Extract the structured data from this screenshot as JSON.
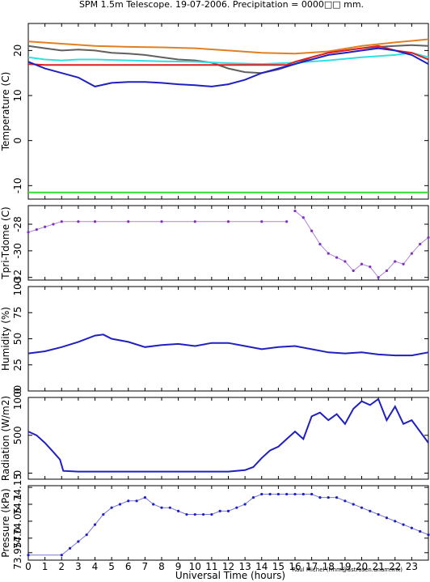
{
  "figure": {
    "title": "SPM 1.5m Telescope. 19-07-2006. Precipitation = 0000□□ mm.",
    "xlabel": "Universal Time (hours)",
    "credit": "Raul Michel (rmm@astrosen.unam.mx)"
  },
  "chart_data": [
    {
      "type": "line",
      "ylabel": "Temperature (C)",
      "xlim": [
        0,
        24
      ],
      "ylim": [
        -13,
        26
      ],
      "xticks": [
        "0",
        "1",
        "2",
        "3",
        "4",
        "5",
        "6",
        "7",
        "8",
        "9",
        "10",
        "11",
        "12",
        "13",
        "14",
        "15",
        "16",
        "17",
        "18",
        "19",
        "20",
        "21",
        "22",
        "23"
      ],
      "yticks": [
        "-10",
        "0",
        "10",
        "20"
      ],
      "series": [
        {
          "color": "#e08020",
          "x": [
            0,
            2,
            4,
            6,
            8,
            10,
            12,
            14,
            16,
            18,
            20,
            22,
            24
          ],
          "y": [
            22,
            21.5,
            21,
            20.8,
            20.7,
            20.5,
            20,
            19.5,
            19.3,
            19.8,
            21,
            21.8,
            22.5
          ]
        },
        {
          "color": "#606060",
          "x": [
            0,
            1,
            2,
            3,
            4,
            5,
            6,
            7,
            8,
            9,
            10,
            11,
            12,
            13,
            14,
            15,
            16,
            17,
            18,
            19,
            20,
            21,
            22,
            23,
            24
          ],
          "y": [
            21,
            20.5,
            20,
            20.2,
            20,
            19.5,
            19.3,
            19,
            18.5,
            18,
            17.8,
            17.3,
            16,
            15.2,
            15,
            15.8,
            17,
            18.5,
            19.5,
            20,
            20.5,
            20.8,
            21,
            21.2,
            21
          ]
        },
        {
          "color": "#30e0e0",
          "x": [
            0,
            1,
            2,
            3,
            4,
            6,
            8,
            10,
            12,
            14,
            16,
            18,
            20,
            22,
            23,
            24
          ],
          "y": [
            18.5,
            18,
            17.8,
            18,
            18,
            17.8,
            17.6,
            17.5,
            17.2,
            17,
            17.3,
            17.8,
            18.5,
            19,
            19.5,
            18.5
          ]
        },
        {
          "color": "#e02020",
          "x": [
            0,
            1,
            2,
            4,
            6,
            8,
            10,
            12,
            14,
            15.5,
            16,
            17,
            18,
            19,
            20,
            21,
            22,
            23,
            24
          ],
          "y": [
            17,
            16.8,
            16.8,
            16.8,
            16.8,
            16.8,
            16.8,
            16.8,
            16.8,
            16.8,
            17.5,
            18.5,
            19.5,
            20,
            20.5,
            21,
            20,
            19.5,
            18
          ]
        },
        {
          "color": "#2020c0",
          "x": [
            0,
            1,
            2,
            3,
            4,
            5,
            6,
            7,
            8,
            9,
            10,
            11,
            12,
            13,
            14,
            15,
            16,
            17,
            18,
            19,
            20,
            21,
            22,
            23,
            24
          ],
          "y": [
            17.5,
            16,
            15,
            14,
            12,
            12.8,
            13,
            13,
            12.8,
            12.5,
            12.3,
            12,
            12.5,
            13.5,
            15,
            16,
            17,
            18,
            19,
            19.5,
            20,
            20.5,
            20,
            19,
            17
          ]
        },
        {
          "color": "#30e030",
          "x": [
            0,
            24
          ],
          "y": [
            -11.5,
            -11.5
          ]
        }
      ]
    },
    {
      "type": "scatter",
      "ylabel": "Tpri-Tdome (C)",
      "xlim": [
        0,
        24
      ],
      "ylim": [
        -32.2,
        -26.6
      ],
      "yticks": [
        "-32",
        "-30",
        "-28"
      ],
      "series": [
        {
          "color": "#8030c0",
          "x": [
            0,
            0.5,
            1,
            1.5,
            2,
            3,
            4,
            6,
            8,
            10,
            12,
            14,
            15.5
          ],
          "y": [
            -28.6,
            -28.4,
            -28.2,
            -28,
            -27.8,
            -27.8,
            -27.8,
            -27.8,
            -27.8,
            -27.8,
            -27.8,
            -27.8,
            -27.8
          ]
        },
        {
          "color": "#8030c0",
          "x": [
            16,
            16.5,
            17,
            17.5,
            18,
            18.5,
            19,
            19.5,
            20,
            20.5,
            21,
            21.5,
            22,
            22.5,
            23,
            23.5,
            24
          ],
          "y": [
            -27,
            -27.5,
            -28.5,
            -29.5,
            -30.2,
            -30.5,
            -30.8,
            -31.5,
            -31,
            -31.2,
            -32,
            -31.5,
            -30.8,
            -31,
            -30.2,
            -29.5,
            -29
          ]
        }
      ]
    },
    {
      "type": "line",
      "ylabel": "Humidity (%)",
      "xlim": [
        0,
        24
      ],
      "ylim": [
        0,
        100
      ],
      "yticks": [
        "0",
        "25",
        "50",
        "75",
        "100"
      ],
      "series": [
        {
          "color": "#2020c0",
          "x": [
            0,
            1,
            2,
            3,
            4,
            4.5,
            5,
            6,
            7,
            8,
            9,
            10,
            11,
            12,
            13,
            14,
            15,
            16,
            17,
            18,
            19,
            20,
            21,
            22,
            23,
            24
          ],
          "y": [
            36,
            38,
            42,
            47,
            53,
            54,
            50,
            47,
            42,
            44,
            45,
            43,
            46,
            46,
            43,
            40,
            42,
            43,
            40,
            37,
            36,
            37,
            35,
            34,
            34,
            37
          ]
        }
      ]
    },
    {
      "type": "line",
      "ylabel": "Radiation (W/m2)",
      "xlim": [
        0,
        24
      ],
      "ylim": [
        -80,
        1000
      ],
      "yticks": [
        "0",
        "500",
        "1000"
      ],
      "series": [
        {
          "color": "#2020c0",
          "x": [
            0,
            0.5,
            1,
            1.5,
            1.9,
            2.1,
            3,
            4,
            6,
            8,
            10,
            12,
            13,
            13.5,
            14,
            14.5,
            15,
            15.5,
            16,
            16.5,
            17,
            17.5,
            18,
            18.5,
            19,
            19.5,
            20,
            20.5,
            21,
            21.5,
            22,
            22.5,
            23,
            23.5,
            24
          ],
          "y": [
            550,
            500,
            400,
            280,
            180,
            30,
            20,
            20,
            20,
            20,
            20,
            20,
            40,
            80,
            200,
            300,
            350,
            450,
            550,
            450,
            750,
            800,
            700,
            780,
            650,
            850,
            950,
            900,
            980,
            700,
            880,
            650,
            700,
            550,
            400
          ]
        }
      ]
    },
    {
      "type": "scatter",
      "ylabel": "Pressure (kPa)",
      "xlim": [
        0,
        24
      ],
      "ylim": [
        73.935,
        74.155
      ],
      "yticks": [
        "73.957",
        "74.0",
        "74.05",
        "74.1",
        "74.15"
      ],
      "ytick_labels_raw": "73.957474.054.74.15",
      "series": [
        {
          "color": "#2020c0",
          "x": [
            0,
            2,
            2.5,
            3,
            3.5,
            4,
            4.5,
            5,
            5.5,
            6,
            6.5,
            7,
            7.5,
            8,
            8.5,
            9,
            9.5,
            10,
            10.5,
            11,
            11.5,
            12,
            12.5,
            13,
            13.5,
            14,
            14.5,
            15,
            15.5,
            16,
            16.5,
            17,
            17.5,
            18,
            18.5,
            19,
            19.5,
            20,
            20.5,
            21,
            21.5,
            22,
            22.5,
            23,
            23.5,
            24
          ],
          "y": [
            73.95,
            73.95,
            73.97,
            73.99,
            74.01,
            74.04,
            74.07,
            74.09,
            74.1,
            74.11,
            74.11,
            74.12,
            74.1,
            74.09,
            74.09,
            74.08,
            74.07,
            74.07,
            74.07,
            74.07,
            74.08,
            74.08,
            74.09,
            74.1,
            74.12,
            74.13,
            74.13,
            74.13,
            74.13,
            74.13,
            74.13,
            74.13,
            74.12,
            74.12,
            74.12,
            74.11,
            74.1,
            74.09,
            74.08,
            74.07,
            74.06,
            74.05,
            74.04,
            74.03,
            74.02,
            74.01
          ]
        }
      ]
    }
  ]
}
